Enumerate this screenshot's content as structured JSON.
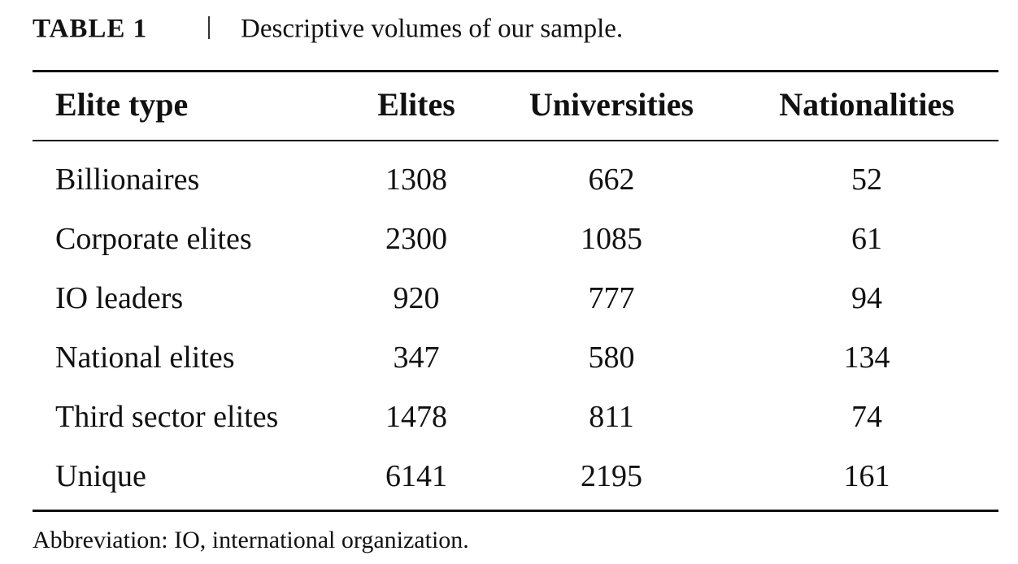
{
  "caption": {
    "label": "TABLE 1",
    "text": "Descriptive volumes of our sample."
  },
  "table": {
    "header": [
      "Elite type",
      "Elites",
      "Universities",
      "Nationalities"
    ],
    "rows": [
      [
        "Billionaires",
        1308,
        662,
        52
      ],
      [
        "Corporate elites",
        2300,
        1085,
        61
      ],
      [
        "IO leaders",
        920,
        777,
        94
      ],
      [
        "National elites",
        347,
        580,
        134
      ],
      [
        "Third sector elites",
        1478,
        811,
        74
      ],
      [
        "Unique",
        6141,
        2195,
        161
      ]
    ]
  },
  "footnote": "Abbreviation: IO, international organization."
}
